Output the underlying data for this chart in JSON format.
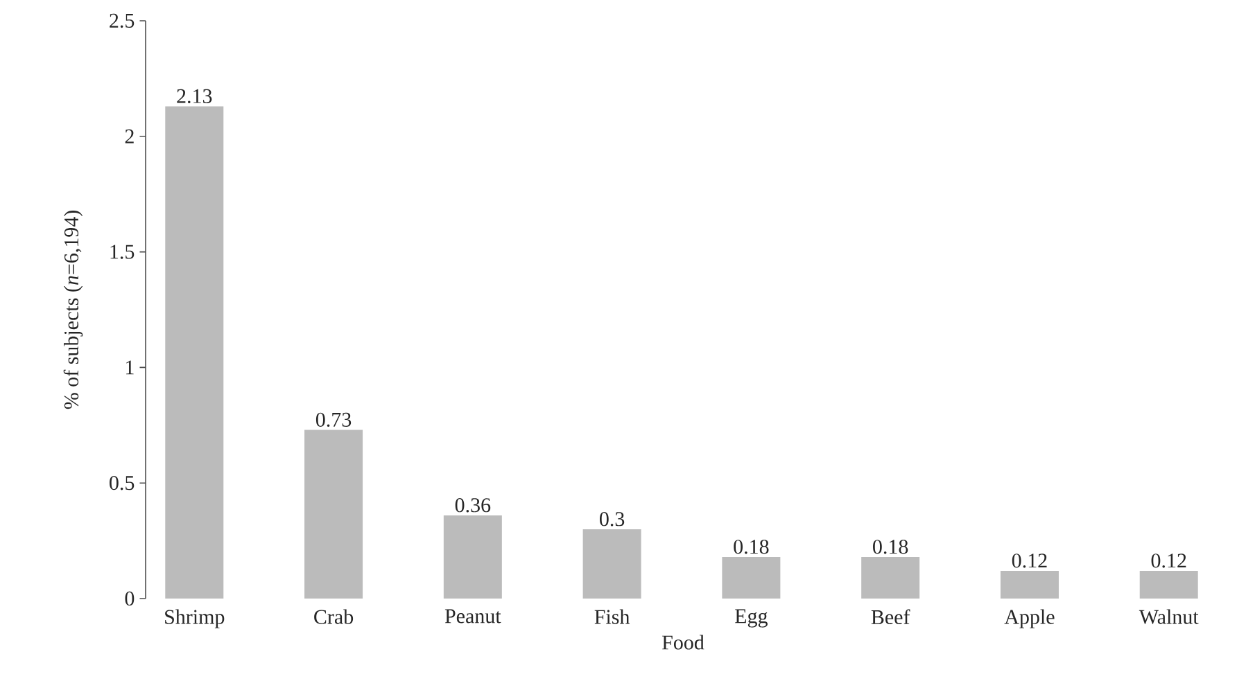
{
  "chart_data": {
    "type": "bar",
    "xlabel": "Food",
    "ylabel": "% of subjects (*n*=6,194)",
    "categories": [
      "Shrimp",
      "Crab",
      "Peanut",
      "Fish",
      "Egg",
      "Beef",
      "Apple",
      "Walnut"
    ],
    "values": [
      2.13,
      0.73,
      0.36,
      0.3,
      0.18,
      0.18,
      0.12,
      0.12
    ],
    "value_labels": [
      "2.13",
      "0.73",
      "0.36",
      "0.3",
      "0.18",
      "0.18",
      "0.12",
      "0.12"
    ],
    "color": "#bbbbbb",
    "ylim": [
      0,
      2.5
    ],
    "yticks": [
      0,
      0.5,
      1,
      1.5,
      2,
      2.5
    ],
    "grid": false
  }
}
